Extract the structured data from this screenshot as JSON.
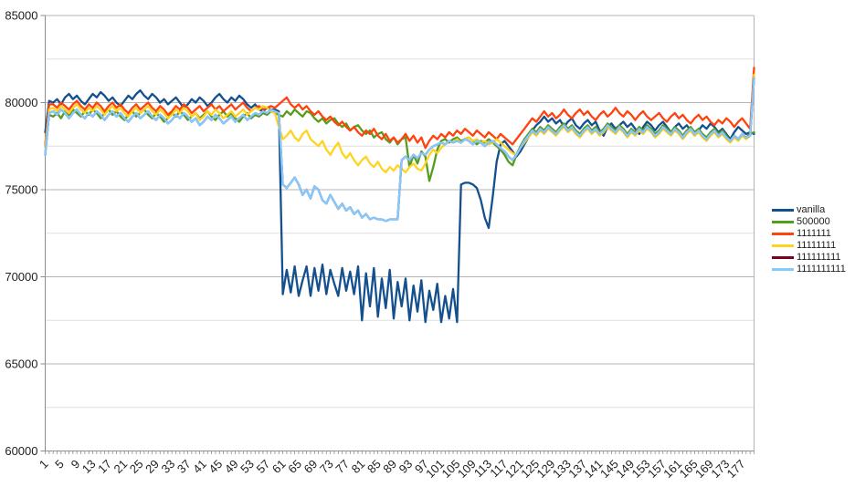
{
  "chart_data": {
    "type": "line",
    "title": "",
    "xlabel": "",
    "ylabel": "",
    "ylim": [
      60000,
      85000
    ],
    "y_major_step": 5000,
    "y_minor_step": 2500,
    "x_labels": {
      "first": 1,
      "step": 4,
      "last": 177
    },
    "n_points": 180,
    "grid": "on",
    "legend_position": "right",
    "style": {
      "grid_major": "#b5b5b5",
      "grid_minor": "#dfdfdf",
      "axis": "#8e8e8e",
      "text": "#1e1e1e",
      "background": "#ffffff"
    },
    "series": [
      {
        "name": "vanilla",
        "color": "#14508e",
        "values": [
          78300,
          80100,
          80000,
          80200,
          79900,
          80300,
          80500,
          80200,
          80400,
          80100,
          79900,
          80200,
          80500,
          80300,
          80600,
          80400,
          80100,
          80300,
          80000,
          79800,
          80100,
          80400,
          80200,
          80500,
          80700,
          80400,
          80200,
          80500,
          80300,
          80000,
          80200,
          79900,
          80100,
          80300,
          80000,
          79700,
          79900,
          80200,
          80000,
          80300,
          80100,
          79800,
          80000,
          80300,
          80500,
          80200,
          80000,
          80300,
          80100,
          80400,
          80200,
          79900,
          79700,
          79900,
          79600,
          79500,
          79700,
          79600,
          79600,
          79500,
          69000,
          70400,
          69100,
          70600,
          68900,
          69800,
          70600,
          68900,
          70500,
          69200,
          70700,
          69000,
          70400,
          69600,
          68900,
          70500,
          69200,
          70300,
          69000,
          70600,
          67500,
          70200,
          68300,
          70500,
          67700,
          69900,
          68200,
          70400,
          67600,
          69700,
          68300,
          69900,
          67500,
          69500,
          68000,
          69800,
          67400,
          69200,
          68100,
          69600,
          67400,
          68900,
          67600,
          69300,
          67400,
          75300,
          75400,
          75400,
          75300,
          75100,
          74400,
          73400,
          72800,
          74600,
          76600,
          77600,
          77800,
          77500,
          77200,
          76900,
          77200,
          77600,
          78000,
          78400,
          78700,
          78900,
          79200,
          78900,
          79100,
          78800,
          79000,
          78600,
          78900,
          79100,
          78700,
          78500,
          78800,
          79000,
          78700,
          78900,
          78400,
          78100,
          78600,
          78800,
          78500,
          78700,
          78900,
          78600,
          78800,
          78500,
          78200,
          78600,
          78900,
          78700,
          78400,
          78700,
          78900,
          78600,
          78300,
          78600,
          78800,
          78500,
          78700,
          78400,
          78100,
          78400,
          78700,
          78500,
          78800,
          78600,
          78300,
          78500,
          78200,
          77900,
          78300,
          78600,
          78400,
          78200,
          78300,
          78200
        ]
      },
      {
        "name": "500000",
        "color": "#579d1c",
        "values": [
          77500,
          79300,
          79200,
          79400,
          79100,
          79500,
          79300,
          79600,
          79400,
          79200,
          79500,
          79300,
          79600,
          79400,
          79100,
          79400,
          79600,
          79300,
          79500,
          79200,
          79000,
          79300,
          79500,
          79200,
          79400,
          79600,
          79300,
          79100,
          79400,
          79200,
          78900,
          79100,
          79400,
          79200,
          79500,
          79300,
          79000,
          79200,
          79400,
          79100,
          79300,
          79500,
          79200,
          79000,
          79300,
          79500,
          79200,
          79400,
          79100,
          78900,
          79200,
          79400,
          79100,
          79300,
          79200,
          79400,
          79300,
          79500,
          79400,
          79300,
          79200,
          79500,
          79300,
          79600,
          79400,
          79200,
          79500,
          79400,
          79100,
          78900,
          79100,
          78800,
          79000,
          79100,
          78800,
          78600,
          78800,
          78400,
          78600,
          78700,
          78400,
          78200,
          78400,
          78000,
          78200,
          78300,
          77900,
          77700,
          78000,
          77600,
          77900,
          78000,
          76300,
          77000,
          76500,
          77200,
          76900,
          75500,
          76300,
          77300,
          77800,
          77900,
          77700,
          77900,
          78000,
          77800,
          77900,
          78000,
          77800,
          77600,
          77800,
          77700,
          77900,
          77700,
          77500,
          77300,
          77000,
          76600,
          76400,
          77000,
          77500,
          77900,
          78200,
          78500,
          78300,
          78600,
          78400,
          78700,
          78500,
          78300,
          78600,
          78800,
          78500,
          78700,
          78400,
          78200,
          78500,
          78700,
          78400,
          78600,
          78300,
          78500,
          78800,
          78600,
          78400,
          78700,
          78500,
          78200,
          78500,
          78300,
          78600,
          78400,
          78700,
          78500,
          78200,
          78400,
          78700,
          78500,
          78300,
          78600,
          78400,
          78100,
          78400,
          78600,
          78300,
          78500,
          78200,
          78000,
          78300,
          78500,
          78200,
          78400,
          78100,
          77800,
          78100,
          77900,
          78200,
          78000,
          78200,
          78300
        ]
      },
      {
        "name": "1111111",
        "color": "#ff420e",
        "values": [
          77600,
          79900,
          79900,
          79700,
          80000,
          79800,
          79600,
          79900,
          80100,
          79800,
          79600,
          79900,
          79700,
          80000,
          79800,
          79500,
          79800,
          80000,
          79700,
          79900,
          79600,
          79400,
          79700,
          79900,
          79600,
          79800,
          80000,
          79700,
          79500,
          79800,
          79600,
          79300,
          79500,
          79800,
          79600,
          79900,
          79700,
          79400,
          79600,
          79800,
          79500,
          79700,
          79900,
          79600,
          79800,
          79500,
          79700,
          79900,
          79600,
          79800,
          80000,
          79700,
          79500,
          79700,
          79800,
          79600,
          79700,
          79800,
          79700,
          79900,
          80100,
          80300,
          79900,
          79700,
          79900,
          79600,
          79800,
          79500,
          79300,
          79500,
          79200,
          79000,
          79200,
          78900,
          78700,
          78900,
          78600,
          78400,
          78600,
          78300,
          78100,
          78400,
          78200,
          78500,
          78100,
          77900,
          78200,
          77800,
          78000,
          77700,
          77900,
          78200,
          77800,
          78100,
          77700,
          78000,
          77400,
          77800,
          78100,
          77900,
          78200,
          78000,
          78300,
          78100,
          78400,
          78200,
          78500,
          78300,
          78100,
          78400,
          78200,
          78000,
          78300,
          78100,
          77900,
          78200,
          78000,
          77800,
          77600,
          77900,
          78200,
          78500,
          78800,
          79100,
          78900,
          79200,
          79500,
          79200,
          79400,
          79100,
          79300,
          79600,
          79300,
          79100,
          79400,
          79600,
          79300,
          79500,
          79200,
          79000,
          79300,
          79500,
          79200,
          79400,
          79700,
          79400,
          79200,
          79500,
          79300,
          79000,
          79300,
          79500,
          79200,
          79000,
          79200,
          79400,
          79100,
          78900,
          79200,
          79400,
          79100,
          79300,
          79000,
          78800,
          79100,
          79300,
          79000,
          79200,
          78900,
          78700,
          79000,
          78800,
          79100,
          78900,
          78600,
          78900,
          79100,
          78800,
          78500,
          82000
        ]
      },
      {
        "name": "11111111",
        "color": "#ffd320",
        "values": [
          77400,
          79600,
          79700,
          79500,
          79800,
          79600,
          79400,
          79700,
          79900,
          79600,
          79400,
          79700,
          79500,
          79800,
          79600,
          79300,
          79600,
          79800,
          79500,
          79700,
          79400,
          79200,
          79500,
          79700,
          79400,
          79600,
          79800,
          79500,
          79300,
          79600,
          79400,
          79100,
          79300,
          79600,
          79400,
          79700,
          79500,
          79200,
          79400,
          79000,
          79200,
          79500,
          79300,
          79600,
          79400,
          79100,
          79300,
          79500,
          79200,
          79400,
          79600,
          79300,
          79500,
          79700,
          79600,
          79800,
          79700,
          79500,
          79400,
          78600,
          77900,
          78100,
          78400,
          78000,
          77800,
          78200,
          78400,
          77900,
          77700,
          77500,
          77800,
          77300,
          77000,
          77400,
          77700,
          77100,
          76800,
          77100,
          76700,
          76400,
          76700,
          76900,
          76500,
          76300,
          76600,
          76200,
          76000,
          76300,
          76100,
          76400,
          76200,
          76000,
          76300,
          76500,
          76200,
          76100,
          76500,
          77000,
          77300,
          77100,
          77400,
          77600,
          77800,
          77700,
          77900,
          77700,
          77900,
          78000,
          77800,
          77900,
          77700,
          77800,
          77600,
          77700,
          77900,
          77700,
          77500,
          77300,
          77100,
          77000,
          77400,
          77700,
          78000,
          78300,
          78100,
          78400,
          78200,
          78500,
          78300,
          78100,
          78400,
          78600,
          78300,
          78500,
          78200,
          78000,
          78300,
          78500,
          78200,
          78400,
          78100,
          78300,
          78600,
          78400,
          78200,
          78500,
          78300,
          78000,
          78300,
          78100,
          78400,
          78200,
          78500,
          78300,
          78000,
          78200,
          78500,
          78300,
          78100,
          78400,
          78200,
          77900,
          78200,
          78400,
          78100,
          78300,
          78000,
          77800,
          78100,
          78300,
          78000,
          78200,
          77900,
          77700,
          78000,
          77800,
          78100,
          77900,
          78100,
          81600
        ]
      },
      {
        "name": "111111111",
        "color": "#7e0021",
        "values": [
          77000,
          79400,
          79500,
          79300,
          79600,
          79400,
          79100,
          79400,
          79600,
          79300,
          79100,
          79400,
          79200,
          79500,
          79300,
          79000,
          79300,
          79500,
          79200,
          79400,
          79100,
          78900,
          79200,
          79400,
          79100,
          79300,
          79500,
          79200,
          79000,
          79300,
          79100,
          78800,
          79000,
          79300,
          79100,
          79400,
          79200,
          78900,
          79100,
          78700,
          78900,
          79200,
          79000,
          79300,
          79100,
          78800,
          79000,
          79200,
          78900,
          79100,
          79300,
          79000,
          79200,
          79400,
          79300,
          79500,
          79400,
          79600,
          79500,
          79400,
          75300,
          75100,
          75400,
          75700,
          75300,
          74700,
          75000,
          74500,
          75200,
          75000,
          74400,
          74200,
          74700,
          74300,
          73900,
          74200,
          73800,
          74000,
          73600,
          73800,
          73400,
          73600,
          73300,
          73400,
          73300,
          73300,
          73200,
          73300,
          73300,
          73300,
          76700,
          76900,
          76700,
          77000,
          76800,
          77100,
          77000,
          77300,
          77500,
          77600,
          77700,
          77600,
          77800,
          77700,
          77800,
          77700,
          77900,
          77800,
          77600,
          77800,
          77700,
          77500,
          77700,
          77800,
          77600,
          77400,
          77200,
          76900,
          76700,
          77000,
          77400,
          77800,
          78100,
          78400,
          78200,
          78500,
          78300,
          78600,
          78400,
          78200,
          78500,
          78700,
          78400,
          78600,
          78300,
          78100,
          78400,
          78600,
          78300,
          78500,
          78200,
          78400,
          78700,
          78500,
          78300,
          78600,
          78400,
          78100,
          78400,
          78200,
          78500,
          78300,
          78600,
          78400,
          78100,
          78300,
          78600,
          78400,
          78200,
          78500,
          78300,
          78000,
          78300,
          78500,
          78200,
          78400,
          78100,
          77900,
          78200,
          78400,
          78100,
          78300,
          78000,
          77800,
          78100,
          77900,
          78200,
          78000,
          78100,
          81400
        ]
      },
      {
        "name": "1111111111",
        "color": "#83caff",
        "values": [
          77000,
          79400,
          79500,
          79300,
          79600,
          79400,
          79100,
          79400,
          79600,
          79300,
          79100,
          79400,
          79200,
          79500,
          79300,
          79000,
          79300,
          79500,
          79200,
          79400,
          79100,
          78900,
          79200,
          79400,
          79100,
          79300,
          79500,
          79200,
          79000,
          79300,
          79100,
          78800,
          79000,
          79300,
          79100,
          79400,
          79200,
          78900,
          79100,
          78700,
          78900,
          79200,
          79000,
          79300,
          79100,
          78800,
          79000,
          79200,
          78900,
          79100,
          79300,
          79000,
          79200,
          79400,
          79300,
          79500,
          79400,
          79600,
          79500,
          79400,
          75300,
          75100,
          75400,
          75700,
          75300,
          74700,
          75000,
          74500,
          75200,
          75000,
          74400,
          74200,
          74700,
          74300,
          73900,
          74200,
          73800,
          74000,
          73600,
          73800,
          73400,
          73600,
          73300,
          73400,
          73300,
          73300,
          73200,
          73300,
          73300,
          73300,
          76700,
          76900,
          76700,
          77000,
          76800,
          77100,
          77000,
          77300,
          77500,
          77600,
          77700,
          77600,
          77800,
          77700,
          77800,
          77700,
          77900,
          77800,
          77600,
          77800,
          77700,
          77500,
          77700,
          77800,
          77600,
          77400,
          77200,
          76900,
          76700,
          77000,
          77400,
          77800,
          78100,
          78400,
          78200,
          78500,
          78300,
          78600,
          78400,
          78200,
          78500,
          78700,
          78400,
          78600,
          78300,
          78100,
          78400,
          78600,
          78300,
          78500,
          78200,
          78400,
          78700,
          78500,
          78300,
          78600,
          78400,
          78100,
          78400,
          78200,
          78500,
          78300,
          78600,
          78400,
          78100,
          78300,
          78600,
          78400,
          78200,
          78500,
          78300,
          78000,
          78300,
          78500,
          78200,
          78400,
          78100,
          77900,
          78200,
          78400,
          78100,
          78300,
          78000,
          77800,
          78100,
          77900,
          78200,
          78000,
          78100,
          81400
        ]
      }
    ]
  }
}
